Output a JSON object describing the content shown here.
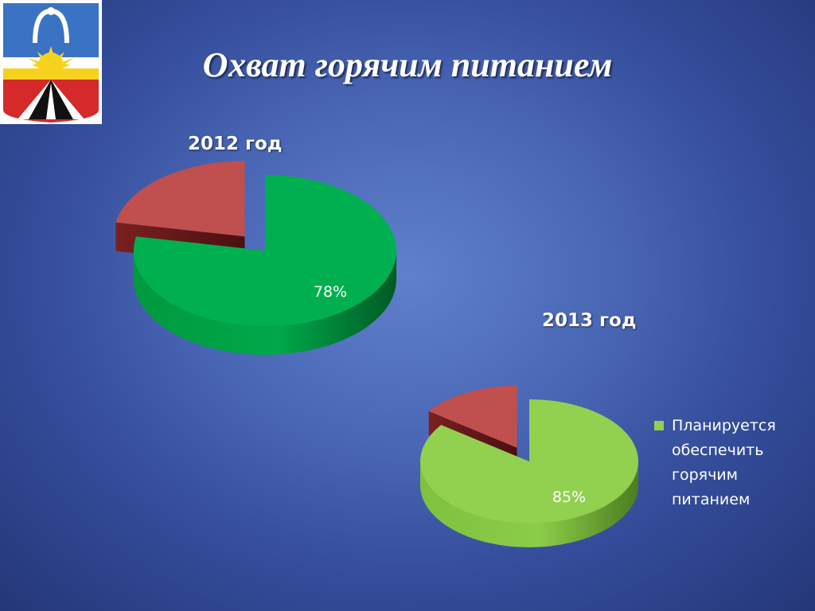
{
  "slide": {
    "title": "Охват горячим питанием"
  },
  "chart_data": [
    {
      "type": "pie",
      "title": "2012 год",
      "values": [
        78,
        22
      ],
      "data_labels": [
        "78%",
        ""
      ],
      "colors": [
        "#00b050",
        "#c0504d"
      ],
      "legend": "none"
    },
    {
      "type": "pie",
      "title": "2013 год",
      "values": [
        85,
        15
      ],
      "data_labels": [
        "85%",
        ""
      ],
      "colors": [
        "#92d050",
        "#c0504d"
      ],
      "legend": "right",
      "legend_entries": [
        "Планируется обеспечить горячим питанием"
      ]
    }
  ]
}
